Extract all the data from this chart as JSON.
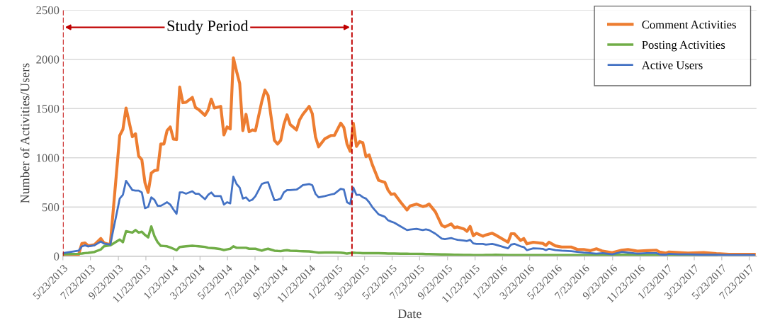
{
  "chart_data": {
    "type": "line",
    "xlabel": "Date",
    "ylabel": "Number of Activities/Users",
    "annotations": [
      "Study Period"
    ],
    "x": [
      "2013-05-23",
      "2013-06-27",
      "2013-07-04",
      "2013-07-11",
      "2013-07-18",
      "2013-08-01",
      "2013-08-15",
      "2013-08-22",
      "2013-09-05",
      "2013-09-26",
      "2013-10-03",
      "2013-10-10",
      "2013-10-24",
      "2013-10-31",
      "2013-11-07",
      "2013-11-14",
      "2013-11-21",
      "2013-11-28",
      "2013-12-05",
      "2013-12-12",
      "2013-12-19",
      "2013-12-26",
      "2014-01-02",
      "2014-01-09",
      "2014-01-16",
      "2014-01-23",
      "2014-01-30",
      "2014-02-06",
      "2014-02-13",
      "2014-02-20",
      "2014-03-06",
      "2014-03-13",
      "2014-03-20",
      "2014-04-03",
      "2014-04-10",
      "2014-04-17",
      "2014-04-24",
      "2014-05-08",
      "2014-05-15",
      "2014-05-22",
      "2014-05-29",
      "2014-06-05",
      "2014-06-12",
      "2014-06-19",
      "2014-06-26",
      "2014-07-03",
      "2014-07-10",
      "2014-07-17",
      "2014-07-24",
      "2014-08-07",
      "2014-08-14",
      "2014-08-21",
      "2014-09-04",
      "2014-09-11",
      "2014-09-18",
      "2014-09-25",
      "2014-10-02",
      "2014-10-09",
      "2014-10-23",
      "2014-10-30",
      "2014-11-06",
      "2014-11-20",
      "2014-11-27",
      "2014-12-04",
      "2014-12-11",
      "2014-12-25",
      "2015-01-08",
      "2015-01-15",
      "2015-01-29",
      "2015-02-05",
      "2015-02-12",
      "2015-02-19",
      "2015-02-26",
      "2015-03-05",
      "2015-03-12",
      "2015-03-19",
      "2015-03-26",
      "2015-04-02",
      "2015-04-09",
      "2015-04-23",
      "2015-05-07",
      "2015-05-14",
      "2015-05-21",
      "2015-05-28",
      "2015-06-11",
      "2015-06-25",
      "2015-07-02",
      "2015-07-16",
      "2015-07-30",
      "2015-08-06",
      "2015-08-13",
      "2015-08-27",
      "2015-09-10",
      "2015-09-17",
      "2015-10-01",
      "2015-10-08",
      "2015-10-15",
      "2015-10-29",
      "2015-11-05",
      "2015-11-12",
      "2015-11-19",
      "2015-11-26",
      "2015-12-10",
      "2015-12-17",
      "2015-12-31",
      "2016-01-07",
      "2016-02-04",
      "2016-02-11",
      "2016-02-18",
      "2016-03-03",
      "2016-03-10",
      "2016-03-17",
      "2016-03-31",
      "2016-04-21",
      "2016-04-28",
      "2016-05-05",
      "2016-05-19",
      "2016-06-02",
      "2016-06-23",
      "2016-07-07",
      "2016-07-21",
      "2016-08-04",
      "2016-08-18",
      "2016-09-01",
      "2016-09-22",
      "2016-10-13",
      "2016-10-27",
      "2016-11-17",
      "2016-12-08",
      "2016-12-29",
      "2017-01-05",
      "2017-01-19",
      "2017-01-26",
      "2017-02-16",
      "2017-03-09",
      "2017-04-13",
      "2017-05-11",
      "2017-06-08",
      "2017-07-06",
      "2017-08-03"
    ],
    "series": [
      {
        "name": "Comment Activities",
        "color": "#ed7d31",
        "values": [
          20,
          20,
          130,
          135,
          106,
          118,
          180,
          135,
          118,
          1227,
          1288,
          1505,
          1214,
          1244,
          1017,
          980,
          746,
          648,
          845,
          870,
          874,
          1140,
          1140,
          1276,
          1313,
          1190,
          1185,
          1719,
          1559,
          1564,
          1613,
          1510,
          1490,
          1431,
          1485,
          1596,
          1505,
          1522,
          1232,
          1313,
          1293,
          2015,
          1879,
          1756,
          1276,
          1441,
          1264,
          1283,
          1276,
          1571,
          1687,
          1633,
          1177,
          1140,
          1177,
          1337,
          1436,
          1337,
          1283,
          1387,
          1441,
          1522,
          1448,
          1214,
          1111,
          1194,
          1227,
          1227,
          1352,
          1308,
          1140,
          1066,
          1350,
          1116,
          1165,
          1153,
          1012,
          1030,
          931,
          771,
          751,
          672,
          628,
          635,
          549,
          470,
          512,
          530,
          505,
          512,
          530,
          451,
          315,
          298,
          328,
          291,
          298,
          278,
          254,
          303,
          209,
          234,
          204,
          217,
          234,
          217,
          143,
          229,
          229,
          160,
          180,
          126,
          143,
          131,
          111,
          143,
          106,
          94,
          94,
          69,
          69,
          57,
          76,
          52,
          37,
          62,
          69,
          52,
          57,
          62,
          44,
          32,
          44,
          37,
          32,
          37,
          27,
          20,
          20,
          20
        ]
      },
      {
        "name": "Posting Activities",
        "color": "#70ad47",
        "values": [
          20,
          25,
          28,
          32,
          35,
          44,
          69,
          101,
          111,
          170,
          143,
          254,
          241,
          266,
          241,
          249,
          217,
          192,
          303,
          204,
          143,
          106,
          104,
          101,
          90,
          76,
          62,
          94,
          98,
          101,
          106,
          104,
          101,
          95,
          86,
          84,
          81,
          72,
          64,
          70,
          76,
          101,
          86,
          86,
          86,
          86,
          76,
          76,
          76,
          57,
          69,
          76,
          57,
          54,
          52,
          58,
          62,
          57,
          54,
          52,
          51,
          49,
          45,
          41,
          37,
          38,
          39,
          38,
          37,
          33,
          27,
          32,
          37,
          34,
          33,
          32,
          32,
          32,
          32,
          31,
          30,
          28,
          27,
          27,
          26,
          26,
          25,
          25,
          24,
          23,
          22,
          20,
          19,
          18,
          17,
          16,
          15,
          14,
          13,
          13,
          12,
          12,
          12,
          13,
          14,
          15,
          12,
          12,
          12,
          12,
          12,
          12,
          12,
          12,
          12,
          12,
          12,
          12,
          12,
          12,
          12,
          12,
          12,
          12,
          12,
          15,
          15,
          12,
          12,
          12,
          12,
          10,
          10,
          10,
          10,
          10,
          10,
          null,
          null,
          null
        ]
      },
      {
        "name": "Active Users",
        "color": "#4472c4",
        "values": [
          32,
          57,
          100,
          111,
          101,
          111,
          150,
          130,
          118,
          586,
          623,
          766,
          672,
          667,
          667,
          648,
          488,
          500,
          598,
          574,
          512,
          512,
          530,
          549,
          525,
          475,
          431,
          648,
          648,
          635,
          660,
          635,
          635,
          579,
          623,
          648,
          611,
          611,
          525,
          549,
          537,
          808,
          734,
          697,
          586,
          598,
          562,
          574,
          611,
          734,
          746,
          751,
          569,
          574,
          586,
          648,
          672,
          672,
          677,
          697,
          722,
          734,
          722,
          635,
          598,
          611,
          628,
          635,
          685,
          677,
          549,
          530,
          697,
          623,
          623,
          600,
          586,
          549,
          500,
          426,
          401,
          365,
          352,
          340,
          303,
          266,
          272,
          278,
          266,
          273,
          266,
          229,
          180,
          175,
          185,
          175,
          167,
          160,
          155,
          167,
          131,
          126,
          126,
          118,
          126,
          118,
          81,
          118,
          126,
          101,
          94,
          62,
          81,
          76,
          62,
          76,
          62,
          57,
          52,
          44,
          37,
          32,
          27,
          32,
          20,
          44,
          37,
          27,
          32,
          32,
          20,
          15,
          25,
          20,
          20,
          15,
          15,
          12,
          12,
          12
        ]
      }
    ],
    "xlim": [
      "2013-05-23",
      "2017-08-08"
    ],
    "xticks": [
      {
        "value": "2013-05-23",
        "label": "5/23/2013"
      },
      {
        "value": "2013-07-23",
        "label": "7/23/2013"
      },
      {
        "value": "2013-09-23",
        "label": "9/23/2013"
      },
      {
        "value": "2013-11-23",
        "label": "11/23/2013"
      },
      {
        "value": "2014-01-23",
        "label": "1/23/2014"
      },
      {
        "value": "2014-03-23",
        "label": "3/23/2014"
      },
      {
        "value": "2014-05-23",
        "label": "5/23/2014"
      },
      {
        "value": "2014-07-23",
        "label": "7/23/2014"
      },
      {
        "value": "2014-09-23",
        "label": "9/23/2014"
      },
      {
        "value": "2014-11-23",
        "label": "11/23/2014"
      },
      {
        "value": "2015-01-23",
        "label": "1/23/2015"
      },
      {
        "value": "2015-03-23",
        "label": "3/23/2015"
      },
      {
        "value": "2015-05-23",
        "label": "5/23/2015"
      },
      {
        "value": "2015-07-23",
        "label": "7/23/2015"
      },
      {
        "value": "2015-09-23",
        "label": "9/23/2015"
      },
      {
        "value": "2015-11-23",
        "label": "11/23/2015"
      },
      {
        "value": "2016-01-23",
        "label": "1/23/2016"
      },
      {
        "value": "2016-03-23",
        "label": "3/23/2016"
      },
      {
        "value": "2016-05-23",
        "label": "5/23/2016"
      },
      {
        "value": "2016-07-23",
        "label": "7/23/2016"
      },
      {
        "value": "2016-09-23",
        "label": "9/23/2016"
      },
      {
        "value": "2016-11-23",
        "label": "11/23/2016"
      },
      {
        "value": "2017-01-23",
        "label": "1/23/2017"
      },
      {
        "value": "2017-03-23",
        "label": "3/23/2017"
      },
      {
        "value": "2017-05-23",
        "label": "5/23/2017"
      },
      {
        "value": "2017-07-23",
        "label": "7/23/2017"
      }
    ],
    "ylim": [
      0,
      2500
    ],
    "yticks": [
      0,
      500,
      1000,
      1500,
      2000,
      2500
    ],
    "ref_lines": [
      {
        "axis": "x",
        "value": "2013-05-23",
        "color": "#c00000",
        "line_style": "dashed"
      },
      {
        "axis": "x",
        "value": "2015-02-23",
        "color": "#c00000",
        "line_style": "dashed"
      }
    ],
    "grid": "y",
    "legend": "top right",
    "marker": "none",
    "line_style": "solid"
  }
}
